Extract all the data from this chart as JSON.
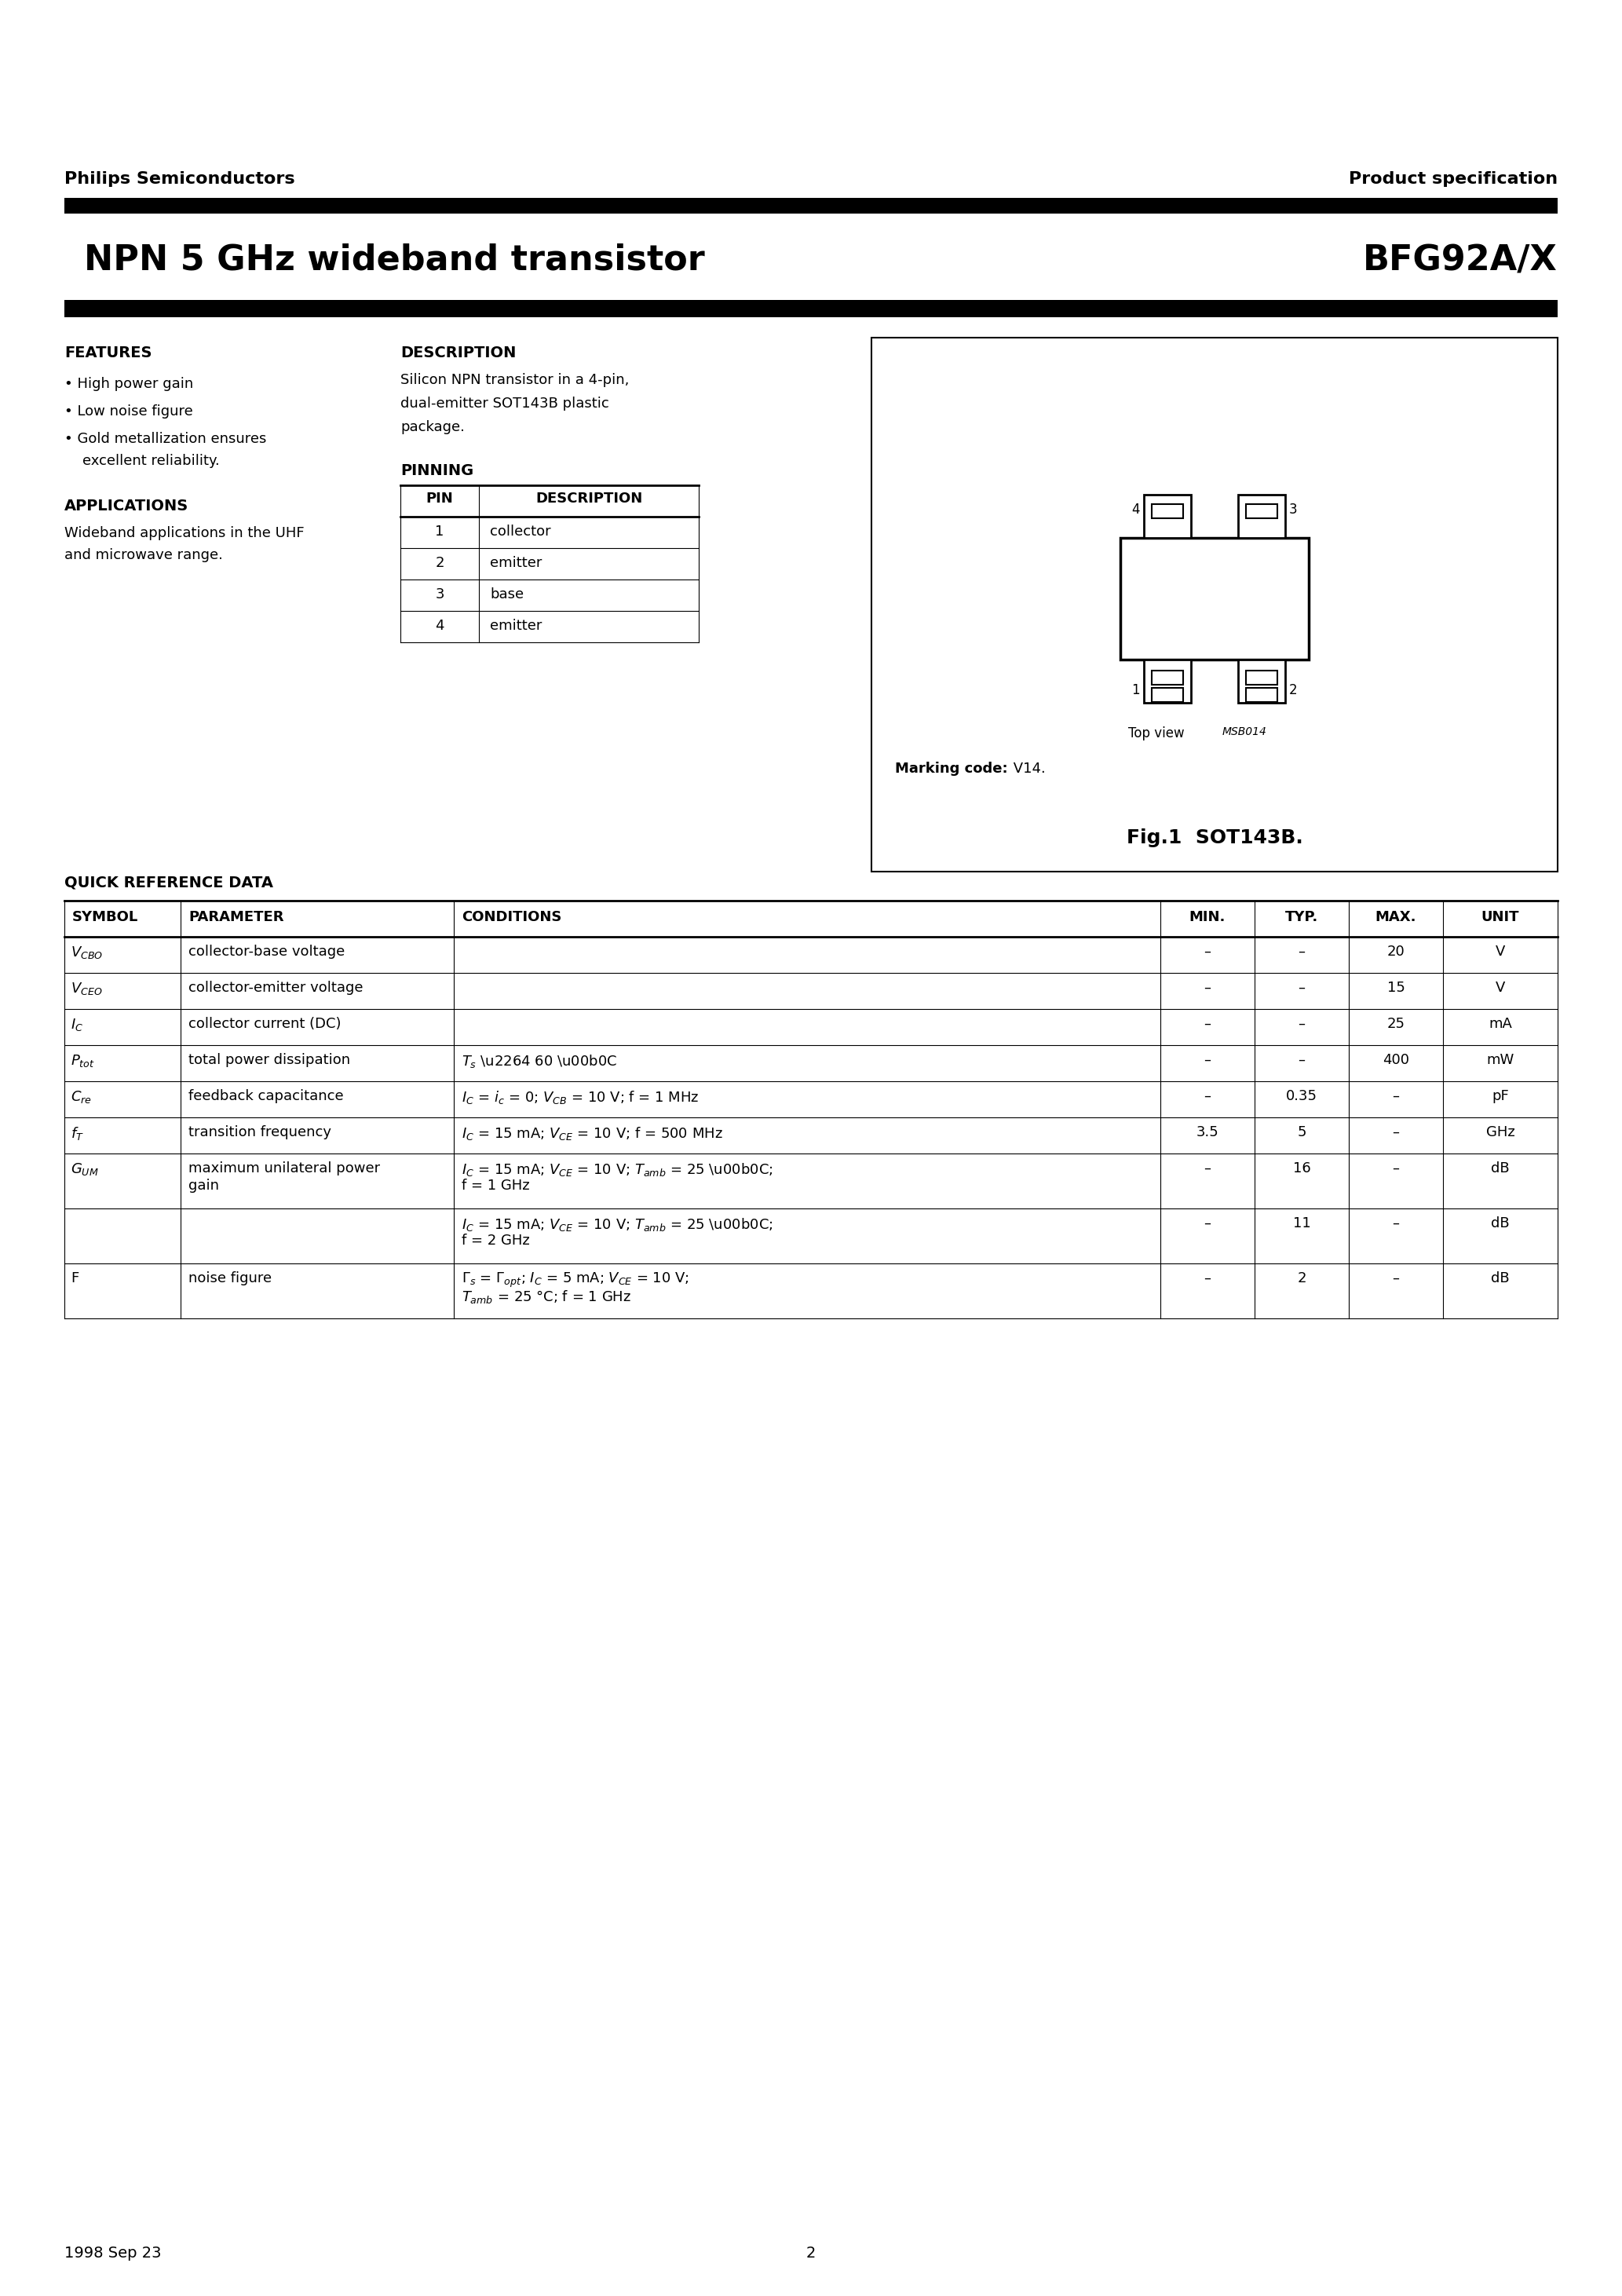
{
  "page_title_left": "NPN 5 GHz wideband transistor",
  "page_title_right": "BFG92A/X",
  "header_left": "Philips Semiconductors",
  "header_right": "Product specification",
  "features_title": "FEATURES",
  "applications_title": "APPLICATIONS",
  "description_title": "DESCRIPTION",
  "pinning_title": "PINNING",
  "pin_table_headers": [
    "PIN",
    "DESCRIPTION"
  ],
  "pin_table_rows": [
    [
      "1",
      "collector"
    ],
    [
      "2",
      "emitter"
    ],
    [
      "3",
      "base"
    ],
    [
      "4",
      "emitter"
    ]
  ],
  "fig_caption": "Fig.1  SOT143B.",
  "marking_code_bold": "Marking code:",
  "marking_code_normal": " V14.",
  "top_view_label": "Top view",
  "msb_label": "MSB014",
  "quick_ref_title": "QUICK REFERENCE DATA",
  "footer_left": "1998 Sep 23",
  "footer_page": "2",
  "bg_color": "#ffffff",
  "text_color": "#000000"
}
